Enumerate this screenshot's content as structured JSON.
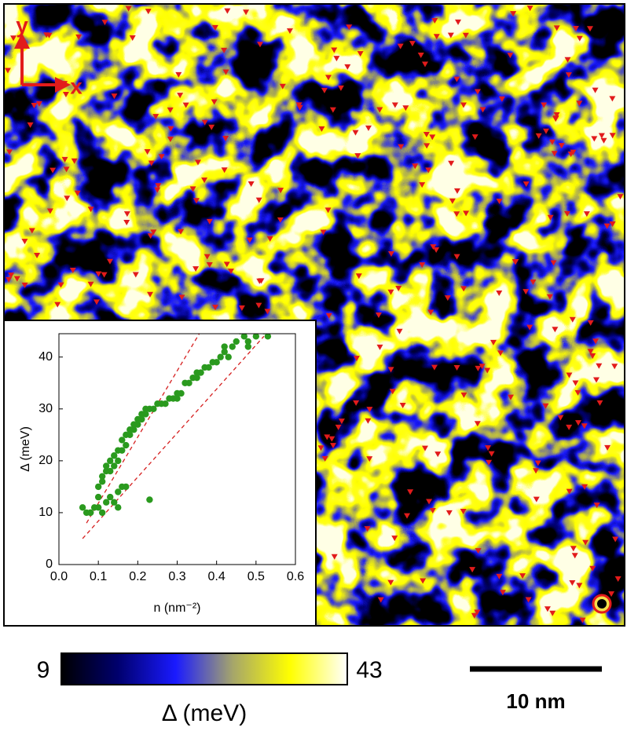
{
  "chart_data": {
    "type": "scatter",
    "xlabel": "n (nm⁻²)",
    "ylabel": "Δ (meV)",
    "color": "#2a9a1e",
    "x": [
      0.06,
      0.07,
      0.08,
      0.09,
      0.1,
      0.1,
      0.11,
      0.11,
      0.12,
      0.12,
      0.13,
      0.13,
      0.14,
      0.14,
      0.15,
      0.15,
      0.16,
      0.16,
      0.17,
      0.17,
      0.18,
      0.18,
      0.19,
      0.19,
      0.2,
      0.2,
      0.21,
      0.21,
      0.22,
      0.22,
      0.23,
      0.24,
      0.25,
      0.26,
      0.27,
      0.28,
      0.29,
      0.3,
      0.31,
      0.32,
      0.33,
      0.34,
      0.35,
      0.36,
      0.37,
      0.38,
      0.39,
      0.4,
      0.41,
      0.42,
      0.43,
      0.44,
      0.45,
      0.46,
      0.47,
      0.48,
      0.5,
      0.52,
      0.53,
      0.12,
      0.13,
      0.14,
      0.15,
      0.16,
      0.17,
      0.1,
      0.11,
      0.23,
      0.15,
      0.08,
      0.3,
      0.35,
      0.42,
      0.48
    ],
    "y": [
      11,
      10,
      10,
      11,
      13,
      15,
      16,
      17,
      18,
      19,
      18,
      20,
      19,
      21,
      20,
      22,
      22,
      24,
      23,
      25,
      25,
      26,
      26,
      27,
      27,
      28,
      28,
      29,
      29,
      30,
      30,
      30,
      31,
      31,
      31,
      32,
      32,
      33,
      33,
      35,
      35,
      36,
      37,
      37,
      38,
      38,
      39,
      39,
      40,
      41,
      40,
      42,
      43,
      45,
      44,
      43,
      44,
      45,
      44,
      12,
      13,
      12,
      14,
      15,
      15,
      11,
      10,
      12.5,
      11,
      10,
      32,
      36,
      42,
      42
    ],
    "fit_lines": [
      {
        "x": [
          0.07,
          0.36
        ],
        "y": [
          8,
          45
        ],
        "color": "#d62020"
      },
      {
        "x": [
          0.06,
          0.52
        ],
        "y": [
          5,
          44
        ],
        "color": "#d62020"
      }
    ],
    "xlim": [
      0,
      0.6
    ],
    "ylim": [
      0,
      44.5
    ],
    "xticks": [
      {
        "value": 0,
        "label": "0.0"
      },
      0.1,
      0.2,
      0.3,
      0.4,
      0.5,
      0.6
    ],
    "yticks": [
      0,
      10,
      20,
      30,
      40
    ]
  },
  "map": {
    "x_label": "x",
    "y_label": "y",
    "scale_bar": "10 nm",
    "colorbar": {
      "min": 9,
      "max": 43,
      "label": "Δ (meV)"
    }
  }
}
